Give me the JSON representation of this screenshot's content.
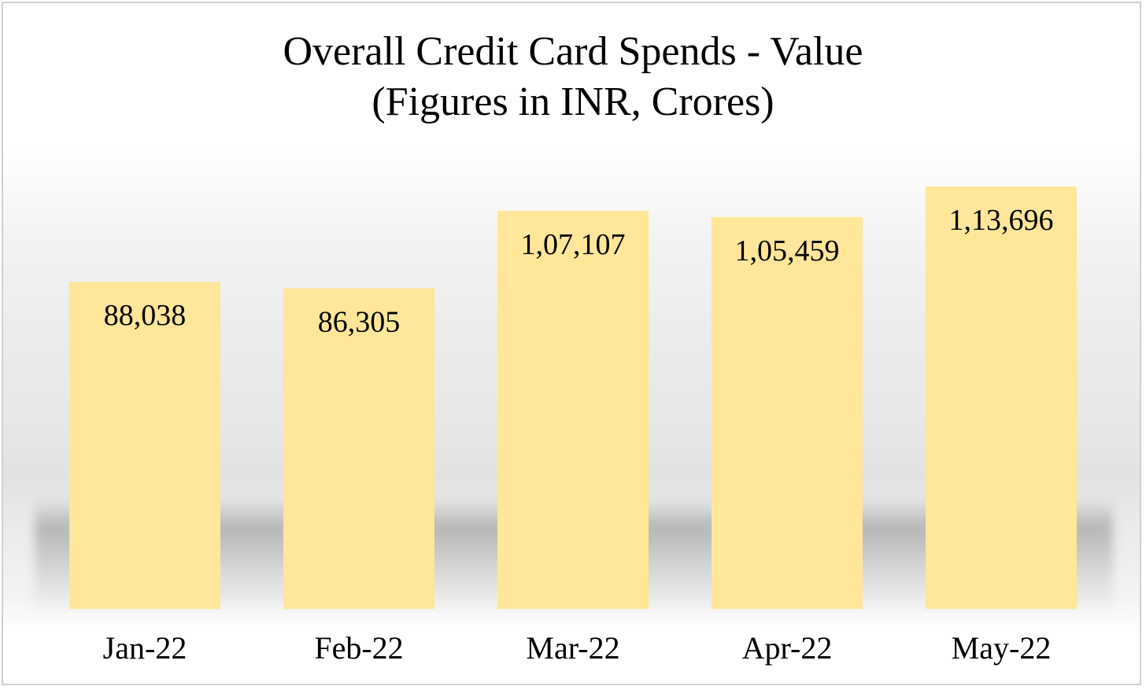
{
  "chart_data": {
    "type": "bar",
    "title": "Overall Credit Card Spends - Value",
    "subtitle": "(Figures in INR, Crores)",
    "categories": [
      "Jan-22",
      "Feb-22",
      "Mar-22",
      "Apr-22",
      "May-22"
    ],
    "values": [
      88038,
      86305,
      107107,
      105459,
      113696
    ],
    "value_labels": [
      "88,038",
      "86,305",
      "1,07,107",
      "1,05,459",
      "1,13,696"
    ],
    "bar_color": "#FFE699",
    "grid": false,
    "legend": "none",
    "y_axis_visible": false
  }
}
